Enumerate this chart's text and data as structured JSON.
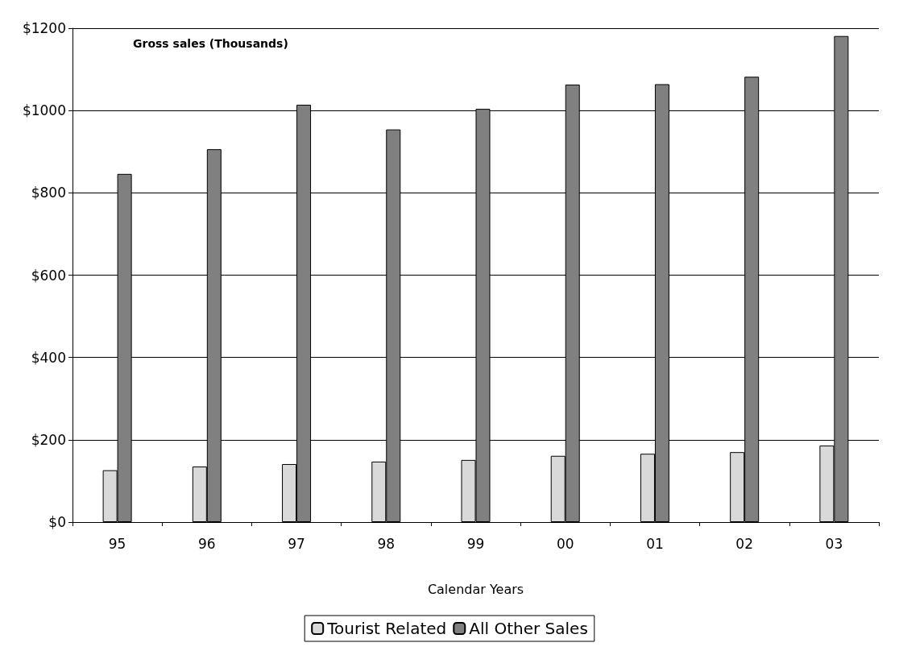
{
  "chart_data": {
    "type": "bar",
    "title": "Gross sales (Thousands)",
    "xlabel": "Calendar Years",
    "categories": [
      "95",
      "96",
      "97",
      "98",
      "99",
      "00",
      "01",
      "02",
      "03"
    ],
    "series": [
      {
        "name": "Tourist Related",
        "color": "#d9d9d9",
        "values": [
          126,
          135,
          141,
          147,
          151,
          161,
          166,
          170,
          186
        ]
      },
      {
        "name": "All Other Sales",
        "color": "#808080",
        "values": [
          846,
          906,
          1014,
          954,
          1004,
          1063,
          1064,
          1082,
          1181
        ]
      }
    ],
    "ylim": [
      0,
      1200
    ],
    "yticks": [
      {
        "value": 0,
        "label": "$0"
      },
      {
        "value": 200,
        "label": "$200"
      },
      {
        "value": 400,
        "label": "$400"
      },
      {
        "value": 600,
        "label": "$600"
      },
      {
        "value": 800,
        "label": "$800"
      },
      {
        "value": 1000,
        "label": "$1000"
      },
      {
        "value": 1200,
        "label": "$1200"
      }
    ],
    "grid": "y",
    "legend": "bottom"
  }
}
